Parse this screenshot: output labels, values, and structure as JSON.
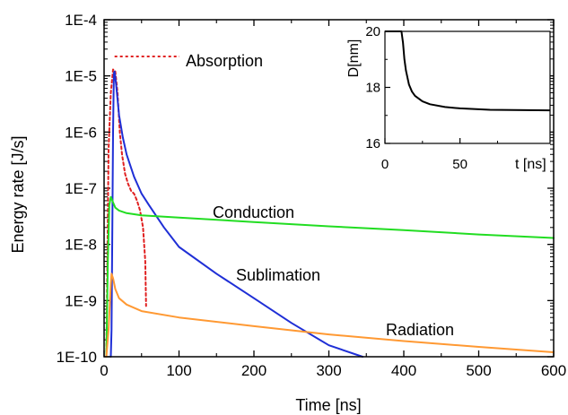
{
  "chart_data": {
    "type": "line",
    "xlabel": "Time [ns]",
    "ylabel": "Energy rate [J/s]",
    "xlim": [
      0,
      600
    ],
    "ylim": [
      1e-10,
      0.0001
    ],
    "yscale": "log",
    "grid": false,
    "x_ticks": [
      "0",
      "100",
      "200",
      "300",
      "400",
      "500",
      "600"
    ],
    "y_ticks": [
      "1E-10",
      "1E-9",
      "1E-8",
      "1E-7",
      "1E-6",
      "1E-5",
      "1E-4"
    ],
    "series": [
      {
        "name": "Absorption",
        "color": "#e02020",
        "style": "dotted",
        "points": [
          [
            3,
            1e-10
          ],
          [
            6,
            5e-07
          ],
          [
            9,
            5e-06
          ],
          [
            12,
            1.3e-05
          ],
          [
            15,
            1.2e-05
          ],
          [
            18,
            5e-06
          ],
          [
            21,
            1e-06
          ],
          [
            24,
            4e-07
          ],
          [
            28,
            1.8e-07
          ],
          [
            32,
            1.2e-07
          ],
          [
            36,
            9e-08
          ],
          [
            40,
            8e-08
          ],
          [
            44,
            6e-08
          ],
          [
            48,
            4e-08
          ],
          [
            52,
            2e-08
          ],
          [
            55,
            5e-09
          ],
          [
            56,
            8e-10
          ]
        ]
      },
      {
        "name": "Sublimation",
        "color": "#1f2fd6",
        "style": "solid",
        "points": [
          [
            9,
            1e-10
          ],
          [
            10,
            3e-10
          ],
          [
            11,
            2e-08
          ],
          [
            12,
            1e-06
          ],
          [
            13,
            1.1e-05
          ],
          [
            14,
            1.2e-05
          ],
          [
            16,
            7e-06
          ],
          [
            20,
            2e-06
          ],
          [
            25,
            8e-07
          ],
          [
            30,
            4e-07
          ],
          [
            40,
            1.6e-07
          ],
          [
            50,
            8e-08
          ],
          [
            60,
            5e-08
          ],
          [
            80,
            2e-08
          ],
          [
            100,
            9e-09
          ],
          [
            150,
            3e-09
          ],
          [
            200,
            1.1e-09
          ],
          [
            250,
            4e-10
          ],
          [
            300,
            1.6e-10
          ],
          [
            345,
            1e-10
          ]
        ]
      },
      {
        "name": "Conduction",
        "color": "#22dd22",
        "style": "solid",
        "points": [
          [
            3,
            1e-10
          ],
          [
            5,
            5e-09
          ],
          [
            7,
            5e-08
          ],
          [
            9,
            7e-08
          ],
          [
            11,
            6e-08
          ],
          [
            15,
            4.5e-08
          ],
          [
            20,
            4e-08
          ],
          [
            30,
            3.6e-08
          ],
          [
            50,
            3.3e-08
          ],
          [
            100,
            3e-08
          ],
          [
            200,
            2.5e-08
          ],
          [
            300,
            2.1e-08
          ],
          [
            400,
            1.8e-08
          ],
          [
            500,
            1.5e-08
          ],
          [
            600,
            1.3e-08
          ]
        ]
      },
      {
        "name": "Radiation",
        "color": "#ff9933",
        "style": "solid",
        "points": [
          [
            3,
            1e-10
          ],
          [
            6,
            3e-10
          ],
          [
            9,
            2e-09
          ],
          [
            10,
            3e-09
          ],
          [
            12,
            2.5e-09
          ],
          [
            15,
            1.6e-09
          ],
          [
            20,
            1.1e-09
          ],
          [
            30,
            8.5e-10
          ],
          [
            50,
            6.5e-10
          ],
          [
            100,
            5e-10
          ],
          [
            200,
            3.5e-10
          ],
          [
            300,
            2.5e-10
          ],
          [
            400,
            1.9e-10
          ],
          [
            500,
            1.5e-10
          ],
          [
            600,
            1.2e-10
          ]
        ]
      }
    ],
    "labels": {
      "absorption": "Absorption",
      "conduction": "Conduction",
      "sublimation": "Sublimation",
      "radiation": "Radiation"
    },
    "inset": {
      "type": "line",
      "xlabel": "t [ns]",
      "ylabel": "D[nm]",
      "xlim": [
        0,
        110
      ],
      "ylim": [
        16,
        20
      ],
      "x_ticks": [
        "0",
        "50"
      ],
      "y_ticks": [
        "16",
        "18",
        "20"
      ],
      "series": [
        {
          "name": "D",
          "color": "#000000",
          "points": [
            [
              0,
              20
            ],
            [
              11,
              20
            ],
            [
              12,
              19.6
            ],
            [
              13,
              19.0
            ],
            [
              14,
              18.6
            ],
            [
              16,
              18.1
            ],
            [
              18,
              17.85
            ],
            [
              20,
              17.7
            ],
            [
              25,
              17.5
            ],
            [
              30,
              17.4
            ],
            [
              40,
              17.3
            ],
            [
              50,
              17.25
            ],
            [
              70,
              17.2
            ],
            [
              110,
              17.18
            ]
          ]
        }
      ]
    }
  }
}
